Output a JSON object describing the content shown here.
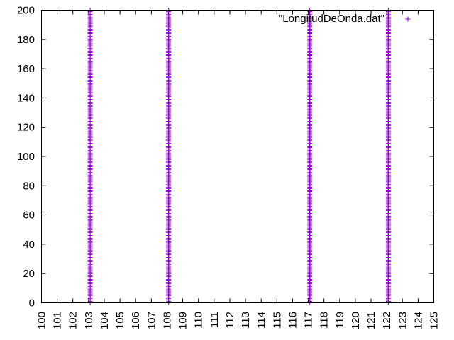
{
  "chart_data": {
    "type": "scatter",
    "title": "",
    "xlabel": "",
    "ylabel": "",
    "xlim": [
      100,
      125
    ],
    "ylim": [
      0,
      200
    ],
    "x_ticks": [
      100,
      101,
      102,
      103,
      104,
      105,
      106,
      107,
      108,
      109,
      110,
      111,
      112,
      113,
      114,
      115,
      116,
      117,
      118,
      119,
      120,
      121,
      122,
      123,
      124,
      125
    ],
    "y_ticks": [
      0,
      20,
      40,
      60,
      80,
      100,
      120,
      140,
      160,
      180,
      200
    ],
    "x_tick_labels": [
      "100",
      "101",
      "102",
      "103",
      "104",
      "105",
      "106",
      "107",
      "108",
      "109",
      "110",
      "111",
      "112",
      "113",
      "114",
      "115",
      "116",
      "117",
      "118",
      "119",
      "120",
      "121",
      "122",
      "123",
      "124",
      "125"
    ],
    "y_tick_labels": [
      "0",
      "20",
      "40",
      "60",
      "80",
      "100",
      "120",
      "140",
      "160",
      "180",
      "200"
    ],
    "grid": false,
    "legend_position": "top-right",
    "series": [
      {
        "name": "\"LongitudDeOnda.dat\"",
        "color": "#9400d3",
        "marker": "plus",
        "columns_x": [
          103.1,
          108.1,
          117.1,
          122.1
        ],
        "y_range": [
          0,
          200
        ],
        "y_step": 1
      }
    ]
  }
}
